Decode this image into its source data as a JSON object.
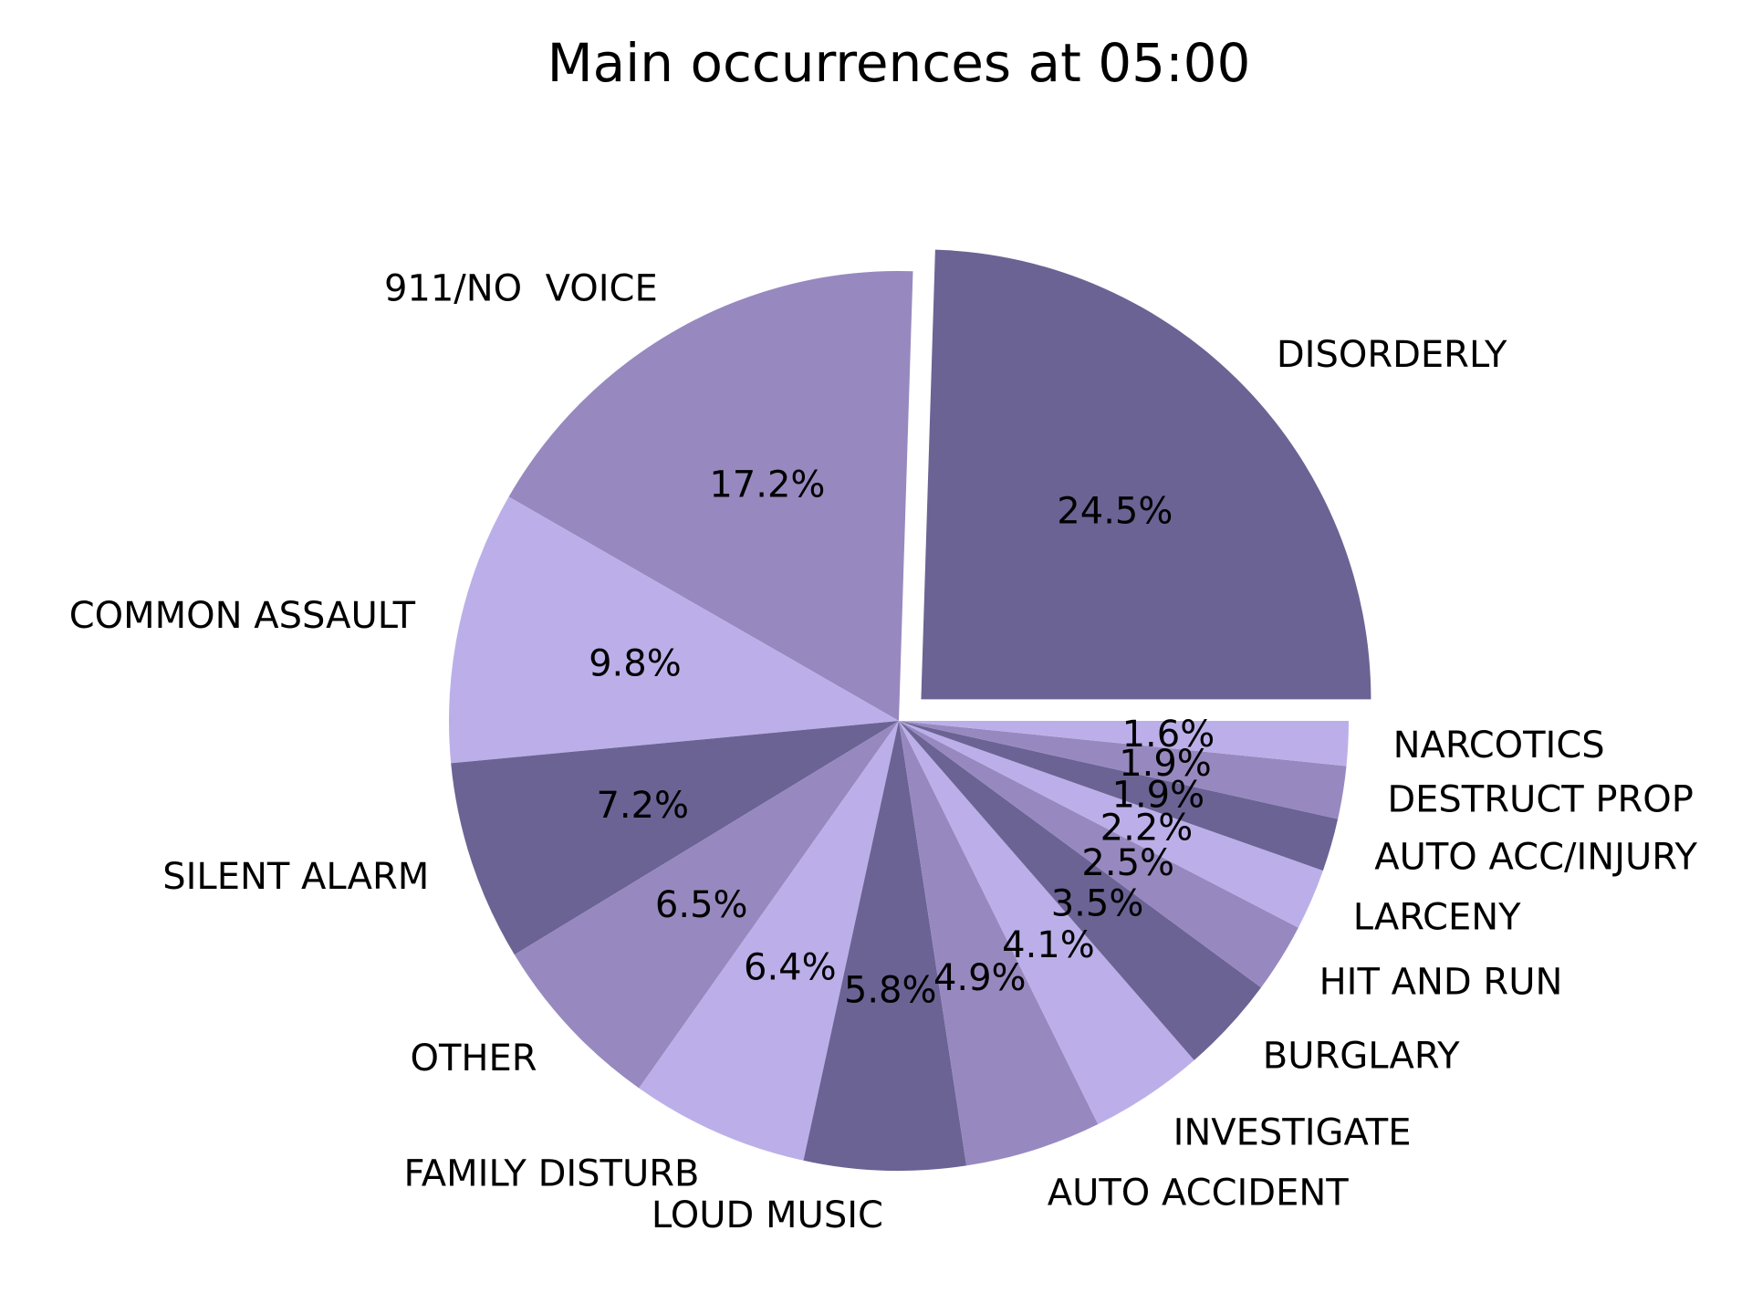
{
  "chart_data": {
    "type": "pie",
    "title": "Main occurrences at 05:00",
    "start_angle_deg": 0,
    "direction": "counterclockwise",
    "exploded": [
      "DISORDERLY"
    ],
    "palette": [
      "#6b6394",
      "#9789bf",
      "#bcafe9"
    ],
    "slices": [
      {
        "label": "DISORDERLY",
        "value": 24.5,
        "pct_label": "24.5%"
      },
      {
        "label": "911/NO  VOICE",
        "value": 17.2,
        "pct_label": "17.2%"
      },
      {
        "label": "COMMON ASSAULT",
        "value": 9.8,
        "pct_label": "9.8%"
      },
      {
        "label": "SILENT ALARM",
        "value": 7.2,
        "pct_label": "7.2%"
      },
      {
        "label": "OTHER",
        "value": 6.5,
        "pct_label": "6.5%"
      },
      {
        "label": "FAMILY DISTURB",
        "value": 6.4,
        "pct_label": "6.4%"
      },
      {
        "label": "LOUD MUSIC",
        "value": 5.8,
        "pct_label": "5.8%"
      },
      {
        "label": "AUTO ACCIDENT",
        "value": 4.9,
        "pct_label": "4.9%"
      },
      {
        "label": "INVESTIGATE",
        "value": 4.1,
        "pct_label": "4.1%"
      },
      {
        "label": "BURGLARY",
        "value": 3.5,
        "pct_label": "3.5%"
      },
      {
        "label": "HIT AND RUN",
        "value": 2.5,
        "pct_label": "2.5%"
      },
      {
        "label": "LARCENY",
        "value": 2.2,
        "pct_label": "2.2%"
      },
      {
        "label": "AUTO ACC/INJURY",
        "value": 1.9,
        "pct_label": "1.9%"
      },
      {
        "label": "DESTRUCT PROP",
        "value": 1.9,
        "pct_label": "1.9%"
      },
      {
        "label": "NARCOTICS",
        "value": 1.6,
        "pct_label": "1.6%"
      }
    ]
  }
}
